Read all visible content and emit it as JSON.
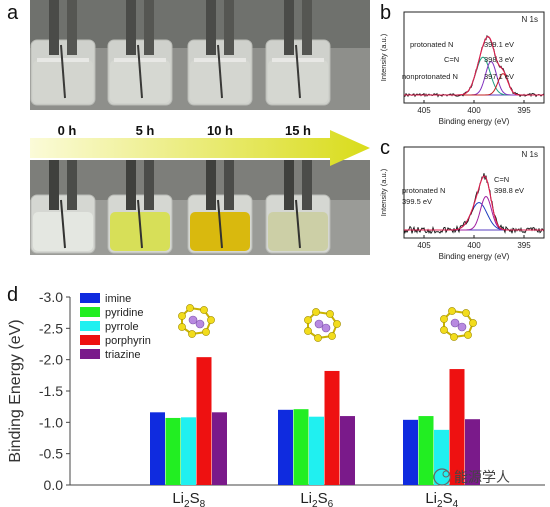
{
  "panel_labels": {
    "a": "a",
    "b": "b",
    "c": "c",
    "d": "d"
  },
  "panel_a": {
    "times": [
      "0 h",
      "5 h",
      "10 h",
      "15 h"
    ],
    "top_row_colors": [
      "#d3d5cf",
      "#d6d8d2",
      "#d4d6d0",
      "#d5d7d1"
    ],
    "bottom_row_colors": [
      "#e4e7e1",
      "#d7df58",
      "#d9b90e",
      "#cccfa6"
    ]
  },
  "panel_b": {
    "title": "N 1s",
    "xlabel": "Binding energy (eV)",
    "ylabel": "Intensity (a.u.)",
    "xticks": [
      "405",
      "400",
      "395"
    ],
    "annotations": [
      "protonated N",
      "399.1 eV",
      "C=N",
      "398.3 eV",
      "nonprotonated N",
      "397.1 eV"
    ]
  },
  "panel_c": {
    "title": "N 1s",
    "xlabel": "Binding energy (eV)",
    "ylabel": "Intensity (a.u.)",
    "xticks": [
      "405",
      "400",
      "395"
    ],
    "annotations": [
      "C=N",
      "398.8 eV",
      "protonated N",
      "399.5 eV"
    ]
  },
  "watermark": "能源学人",
  "chart_data": {
    "type": "bar",
    "ylabel": "Binding Energy (eV)",
    "ylim": [
      0.0,
      -3.0
    ],
    "yticks": [
      "-3.0",
      "-2.5",
      "-2.0",
      "-1.5",
      "-1.0",
      "-0.5",
      "0.0"
    ],
    "categories": [
      "Li2S8",
      "Li2S6",
      "Li2S4"
    ],
    "category_labels": [
      {
        "main": "Li",
        "sub1": "2",
        "mid": "S",
        "sub2": "8"
      },
      {
        "main": "Li",
        "sub1": "2",
        "mid": "S",
        "sub2": "6"
      },
      {
        "main": "Li",
        "sub1": "2",
        "mid": "S",
        "sub2": "4"
      }
    ],
    "series": [
      {
        "name": "imine",
        "color": "#0f2bdf",
        "values": [
          -1.16,
          -1.2,
          -1.04
        ]
      },
      {
        "name": "pyridine",
        "color": "#22ee22",
        "values": [
          -1.07,
          -1.21,
          -1.1
        ]
      },
      {
        "name": "pyrrole",
        "color": "#20f0f0",
        "values": [
          -1.08,
          -1.09,
          -0.88
        ]
      },
      {
        "name": "porphyrin",
        "color": "#ee1111",
        "values": [
          -2.04,
          -1.82,
          -1.85
        ]
      },
      {
        "name": "triazine",
        "color": "#7a1a8a",
        "values": [
          -1.16,
          -1.1,
          -1.05
        ]
      }
    ],
    "legend_position": "top-left"
  }
}
